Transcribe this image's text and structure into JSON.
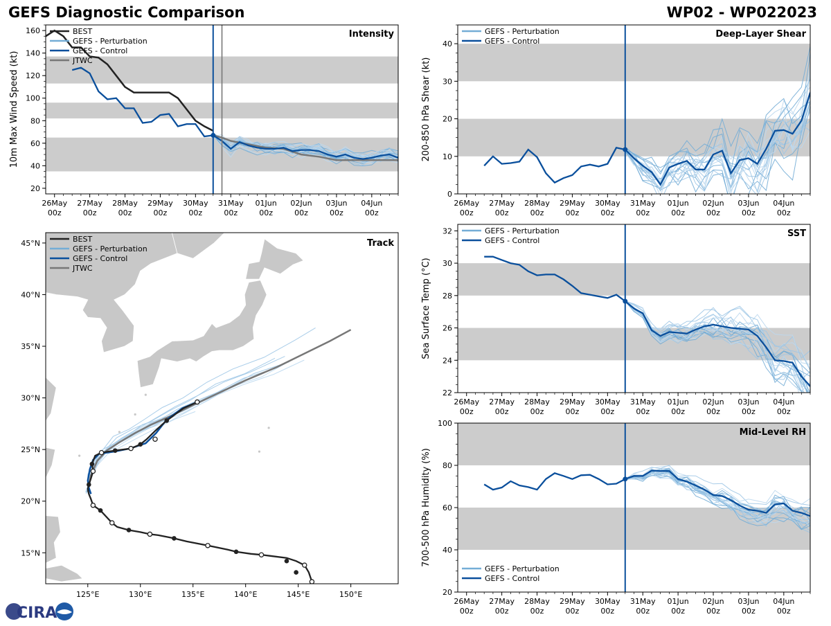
{
  "header": {
    "title_left": "GEFS Diagnostic Comparison",
    "title_right": "WP02 - WP022023"
  },
  "colors": {
    "best": "#222222",
    "perturbation": "#74add6",
    "control": "#0a4f9c",
    "jtwc": "#777777",
    "band": "#cccccc",
    "land": "#c8c8c8"
  },
  "chart_data": [
    {
      "id": "intensity",
      "type": "line",
      "panel_label": "Intensity",
      "ylabel": "10m Max Wind Speed (kt)",
      "ylim": [
        15,
        165
      ],
      "yticks": [
        20,
        40,
        60,
        80,
        100,
        120,
        140,
        160
      ],
      "x_unit": "days since 26May 00z",
      "xlim": [
        -0.25,
        9.75
      ],
      "xtick_labels": [
        "26May\n00z",
        "27May\n00z",
        "28May\n00z",
        "29May\n00z",
        "30May\n00z",
        "31May\n00z",
        "01Jun\n00z",
        "02Jun\n00z",
        "03Jun\n00z",
        "04Jun\n00z"
      ],
      "init_time": 4.5,
      "jtwc_time": 4.75,
      "bands": [
        [
          35,
          65
        ],
        [
          82,
          96
        ],
        [
          113,
          137
        ]
      ],
      "legend": [
        "BEST",
        "GEFS - Perturbation",
        "GEFS - Control",
        "JTWC"
      ],
      "best": {
        "x": [
          -0.25,
          0,
          0.25,
          0.5,
          0.75,
          1,
          1.25,
          1.5,
          1.75,
          2,
          2.25,
          2.5,
          2.75,
          3,
          3.25,
          3.5,
          3.75,
          4,
          4.25,
          4.5
        ],
        "y": [
          155,
          160,
          155,
          145,
          145,
          137,
          136,
          130,
          120,
          110,
          105,
          105,
          105,
          105,
          105,
          100,
          90,
          80,
          75,
          71
        ]
      },
      "control": {
        "x": [
          0.5,
          0.75,
          1,
          1.25,
          1.5,
          1.75,
          2,
          2.25,
          2.5,
          2.75,
          3,
          3.25,
          3.5,
          3.75,
          4,
          4.25,
          4.5,
          4.75,
          5,
          5.25,
          5.5,
          5.75,
          6,
          6.25,
          6.5,
          6.75,
          7,
          7.25,
          7.5,
          7.75,
          8,
          8.25,
          8.5,
          8.75,
          9,
          9.25,
          9.5,
          9.75
        ],
        "y": [
          125,
          127,
          122,
          106,
          99,
          100,
          91,
          91,
          78,
          79,
          85,
          86,
          75,
          77,
          77,
          66,
          67,
          62,
          55,
          61,
          58,
          56,
          55,
          55,
          56,
          53,
          54,
          54,
          53,
          50,
          48,
          50,
          47,
          46,
          47,
          49,
          50,
          47
        ]
      },
      "jtwc": {
        "x": [
          4.5,
          4.75,
          5,
          5.5,
          6,
          6.5,
          7,
          7.5,
          8,
          8.5,
          9,
          9.5,
          9.75
        ],
        "y": [
          67,
          65,
          62,
          59,
          56,
          55,
          50,
          48,
          45,
          45,
          45,
          45,
          45
        ]
      },
      "perturbation": {
        "spread": 6,
        "n": 20
      }
    },
    {
      "id": "shear",
      "type": "line",
      "panel_label": "Deep-Layer Shear",
      "ylabel": "200-850 hPa Shear (kt)",
      "ylim": [
        0,
        45
      ],
      "yticks": [
        0,
        10,
        20,
        30,
        40
      ],
      "xlim": [
        -0.25,
        9.75
      ],
      "init_time": 4.5,
      "bands": [
        [
          10,
          20
        ],
        [
          30,
          40
        ]
      ],
      "legend": [
        "GEFS - Perturbation",
        "GEFS - Control"
      ],
      "control": {
        "x": [
          0.5,
          0.75,
          1,
          1.25,
          1.5,
          1.75,
          2,
          2.25,
          2.5,
          2.75,
          3,
          3.25,
          3.5,
          3.75,
          4,
          4.25,
          4.5,
          4.75,
          5,
          5.25,
          5.5,
          5.75,
          6,
          6.25,
          6.5,
          6.75,
          7,
          7.25,
          7.5,
          7.75,
          8,
          8.25,
          8.5,
          8.75,
          9,
          9.25,
          9.5,
          9.75
        ],
        "y": [
          7.5,
          10,
          8,
          8.2,
          8.6,
          11.8,
          9.8,
          5.5,
          3,
          4.2,
          5,
          7.3,
          7.8,
          7.3,
          8,
          12.3,
          11.8,
          9.5,
          7.5,
          5.8,
          2.5,
          7,
          8,
          8.8,
          6.5,
          6.5,
          10.5,
          11.5,
          5.5,
          9,
          9.5,
          8,
          12,
          16.8,
          17,
          16,
          19.5,
          27
        ]
      },
      "perturbation": {
        "spread_start": 2.5,
        "spread_end": 12,
        "n": 20
      }
    },
    {
      "id": "sst",
      "type": "line",
      "panel_label": "SST",
      "ylabel": "Sea Surface Temp (°C)",
      "ylim": [
        22,
        32.4
      ],
      "yticks": [
        22,
        24,
        26,
        28,
        30,
        32
      ],
      "xlim": [
        -0.25,
        9.75
      ],
      "init_time": 4.5,
      "bands": [
        [
          24,
          26
        ],
        [
          28,
          30
        ]
      ],
      "legend": [
        "GEFS - Perturbation",
        "GEFS - Control"
      ],
      "control": {
        "x": [
          0.5,
          0.75,
          1,
          1.25,
          1.5,
          1.75,
          2,
          2.25,
          2.5,
          2.75,
          3,
          3.25,
          3.5,
          3.75,
          4,
          4.25,
          4.5,
          4.75,
          5,
          5.25,
          5.5,
          5.75,
          6,
          6.25,
          6.5,
          6.75,
          7,
          7.25,
          7.5,
          7.75,
          8,
          8.25,
          8.5,
          8.75,
          9,
          9.25,
          9.5,
          9.75
        ],
        "y": [
          30.4,
          30.4,
          30.2,
          30,
          29.9,
          29.5,
          29.25,
          29.3,
          29.3,
          29,
          28.6,
          28.15,
          28.05,
          27.95,
          27.85,
          28.05,
          27.65,
          27.2,
          26.9,
          25.85,
          25.5,
          25.75,
          25.7,
          25.65,
          25.9,
          26.1,
          26.2,
          26.1,
          26,
          25.95,
          25.9,
          25.5,
          24.8,
          24,
          23.95,
          23.85,
          23,
          22.4
        ]
      },
      "perturbation": {
        "spread_start": 0.15,
        "spread_end": 1.8,
        "n": 20
      }
    },
    {
      "id": "rh",
      "type": "line",
      "panel_label": "Mid-Level RH",
      "ylabel": "700-500 hPa Humidity (%)",
      "ylim": [
        20,
        100
      ],
      "yticks": [
        20,
        40,
        60,
        80,
        100
      ],
      "xlim": [
        -0.25,
        9.75
      ],
      "init_time": 4.5,
      "bands": [
        [
          40,
          60
        ],
        [
          80,
          100
        ]
      ],
      "legend": [
        "GEFS - Perturbation",
        "GEFS - Control"
      ],
      "control": {
        "x": [
          0.5,
          0.75,
          1,
          1.25,
          1.5,
          1.75,
          2,
          2.25,
          2.5,
          2.75,
          3,
          3.25,
          3.5,
          3.75,
          4,
          4.25,
          4.5,
          4.75,
          5,
          5.25,
          5.5,
          5.75,
          6,
          6.25,
          6.5,
          6.75,
          7,
          7.25,
          7.5,
          7.75,
          8,
          8.25,
          8.5,
          8.75,
          9,
          9.25,
          9.5,
          9.75
        ],
        "y": [
          71,
          68.5,
          69.5,
          72.5,
          70.5,
          69.7,
          68.5,
          73.5,
          76.3,
          75,
          73.5,
          75.3,
          75.5,
          73.5,
          71,
          71.3,
          73.5,
          75,
          75,
          77.5,
          77.3,
          77.3,
          73.5,
          72.3,
          70.5,
          68.5,
          66,
          65.5,
          63.5,
          61,
          59,
          58.5,
          57.5,
          61.5,
          62,
          58.5,
          57.5,
          56
        ]
      },
      "perturbation": {
        "spread_start": 1.5,
        "spread_end": 8,
        "n": 20
      }
    },
    {
      "id": "track",
      "type": "line",
      "panel_label": "Track",
      "xlim": [
        121,
        154.5
      ],
      "ylim": [
        12,
        46
      ],
      "xticks": [
        125,
        130,
        135,
        140,
        145,
        150
      ],
      "xtick_labels": [
        "125°E",
        "130°E",
        "135°E",
        "140°E",
        "145°E",
        "150°E"
      ],
      "yticks": [
        15,
        20,
        25,
        30,
        35,
        40,
        45
      ],
      "ytick_labels": [
        "15°N",
        "20°N",
        "25°N",
        "30°N",
        "35°N",
        "40°N",
        "45°N"
      ],
      "legend": [
        "BEST",
        "GEFS - Perturbation",
        "GEFS - Control",
        "JTWC"
      ],
      "best": {
        "lon": [
          146.3,
          146,
          145.6,
          144.8,
          143.9,
          142.3,
          141.5,
          140.5,
          139.1,
          138.3,
          136.4,
          134.4,
          133.2,
          131.7,
          130.9,
          130,
          128.9,
          127.8,
          127.3,
          126.2,
          125.5,
          125.3,
          125.1,
          125,
          125.1,
          125.3,
          125.5,
          125.4,
          125.7,
          126.3,
          127.6,
          129.1,
          130,
          130.6,
          131.4,
          132.5,
          134.1,
          135.4
        ],
        "lat": [
          12.2,
          13.1,
          13.8,
          14.2,
          14.5,
          14.7,
          14.8,
          14.9,
          15.1,
          15.3,
          15.7,
          16.1,
          16.4,
          16.7,
          16.8,
          17,
          17.2,
          17.5,
          17.9,
          19.1,
          19.6,
          20.2,
          20.7,
          21.2,
          21.6,
          22.2,
          22.9,
          23.6,
          24.4,
          24.7,
          24.9,
          25.1,
          25.5,
          26,
          26.8,
          27.8,
          29,
          29.6
        ]
      },
      "best_open_pts": [
        [
          146.3,
          12.2
        ],
        [
          145.6,
          13.8
        ],
        [
          141.5,
          14.8
        ],
        [
          136.4,
          15.7
        ],
        [
          130.9,
          16.8
        ],
        [
          127.3,
          17.9
        ],
        [
          125.5,
          19.6
        ],
        [
          125.5,
          22.9
        ],
        [
          126.3,
          24.7
        ],
        [
          129.1,
          25.1
        ],
        [
          131.4,
          26
        ],
        [
          135.4,
          29.6
        ]
      ],
      "best_filled_pts": [
        [
          144.8,
          13.1
        ],
        [
          143.9,
          14.2
        ],
        [
          139.1,
          15.1
        ],
        [
          133.2,
          16.4
        ],
        [
          128.9,
          17.2
        ],
        [
          126.2,
          19.1
        ],
        [
          125.1,
          21.6
        ],
        [
          125.4,
          23.6
        ],
        [
          127.6,
          24.9
        ],
        [
          130,
          25.5
        ],
        [
          132.5,
          27.8
        ]
      ],
      "control": {
        "lon": [
          125.3,
          125.1,
          125,
          125.2,
          125.5,
          126.1,
          127.5,
          129,
          130.5,
          131.5,
          132.5,
          134,
          135.4
        ],
        "lat": [
          20.7,
          21.3,
          22,
          23.1,
          24,
          24.6,
          24.8,
          25.1,
          25.6,
          26.6,
          27.9,
          29,
          29.6
        ]
      },
      "jtwc": {
        "lon": [
          125,
          125.3,
          125.9,
          126.8,
          128,
          129.5,
          131,
          133,
          135,
          137.5,
          140,
          143,
          146,
          148,
          150
        ],
        "lat": [
          20.9,
          22.5,
          23.9,
          24.9,
          25.7,
          26.6,
          27.4,
          28.3,
          29.3,
          30.5,
          31.7,
          33,
          34.5,
          35.5,
          36.6
        ]
      },
      "perturbation": {
        "n": 14
      }
    }
  ],
  "logo": {
    "text": "CIRA"
  }
}
